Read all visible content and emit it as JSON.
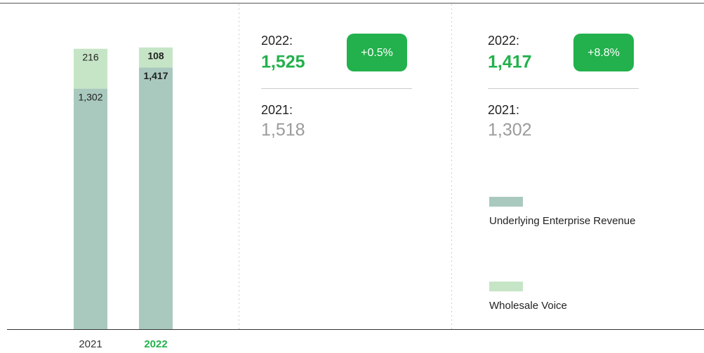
{
  "chart_data": {
    "type": "stacked-bar",
    "categories": [
      "2021",
      "2022"
    ],
    "series": [
      {
        "name": "Underlying Enterprise Revenue",
        "color": "#a9c9be",
        "values": [
          1302,
          1417
        ],
        "value_labels": [
          "1,302",
          "1,417"
        ]
      },
      {
        "name": "Wholesale Voice",
        "color": "#c6e5c6",
        "values": [
          216,
          108
        ]
      }
    ],
    "ylim": [
      0,
      1600
    ]
  },
  "panels": [
    {
      "current_label": "2022:",
      "current_value": "1,525",
      "change": "+0.5%",
      "previous_label": "2021:",
      "previous_value": "1,518"
    },
    {
      "current_label": "2022:",
      "current_value": "1,417",
      "change": "+8.8%",
      "previous_label": "2021:",
      "previous_value": "1,302"
    }
  ]
}
